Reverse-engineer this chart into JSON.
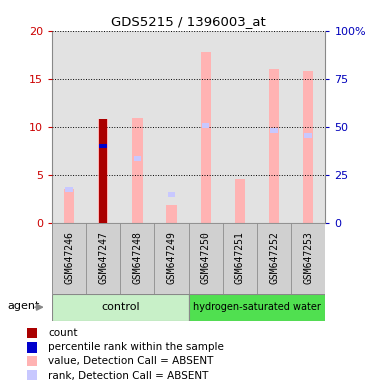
{
  "title": "GDS5215 / 1396003_at",
  "samples": [
    "GSM647246",
    "GSM647247",
    "GSM647248",
    "GSM647249",
    "GSM647250",
    "GSM647251",
    "GSM647252",
    "GSM647253"
  ],
  "left_ylim": [
    0,
    20
  ],
  "right_ylim": [
    0,
    100
  ],
  "left_yticks": [
    0,
    5,
    10,
    15,
    20
  ],
  "right_yticks": [
    0,
    25,
    50,
    75,
    100
  ],
  "right_yticklabels": [
    "0",
    "25",
    "50",
    "75",
    "100%"
  ],
  "pink_bars": [
    3.5,
    10.8,
    10.9,
    1.8,
    17.8,
    4.6,
    16.0,
    15.8
  ],
  "dark_red_bars": [
    null,
    10.8,
    null,
    null,
    null,
    null,
    null,
    null
  ],
  "blue_squares": [
    null,
    8.0,
    null,
    null,
    null,
    null,
    null,
    null
  ],
  "light_blue_squares": [
    3.5,
    null,
    6.7,
    2.9,
    null,
    null,
    null,
    null
  ],
  "rank_right_absent": [
    null,
    null,
    null,
    null,
    10.1,
    null,
    9.6,
    9.1
  ],
  "color_pink": "#ffb3b3",
  "color_darkred": "#aa0000",
  "color_blue": "#0000cc",
  "color_lightblue": "#c8c8ff",
  "color_gray_bg": "#d0d0d0",
  "color_green_light": "#c8f0c8",
  "color_green_dark": "#50e050",
  "left_axis_color": "#cc0000",
  "right_axis_color": "#0000bb",
  "legend_items": [
    {
      "label": "count",
      "color": "#aa0000"
    },
    {
      "label": "percentile rank within the sample",
      "color": "#0000cc"
    },
    {
      "label": "value, Detection Call = ABSENT",
      "color": "#ffb3b3"
    },
    {
      "label": "rank, Detection Call = ABSENT",
      "color": "#c8c8ff"
    }
  ]
}
